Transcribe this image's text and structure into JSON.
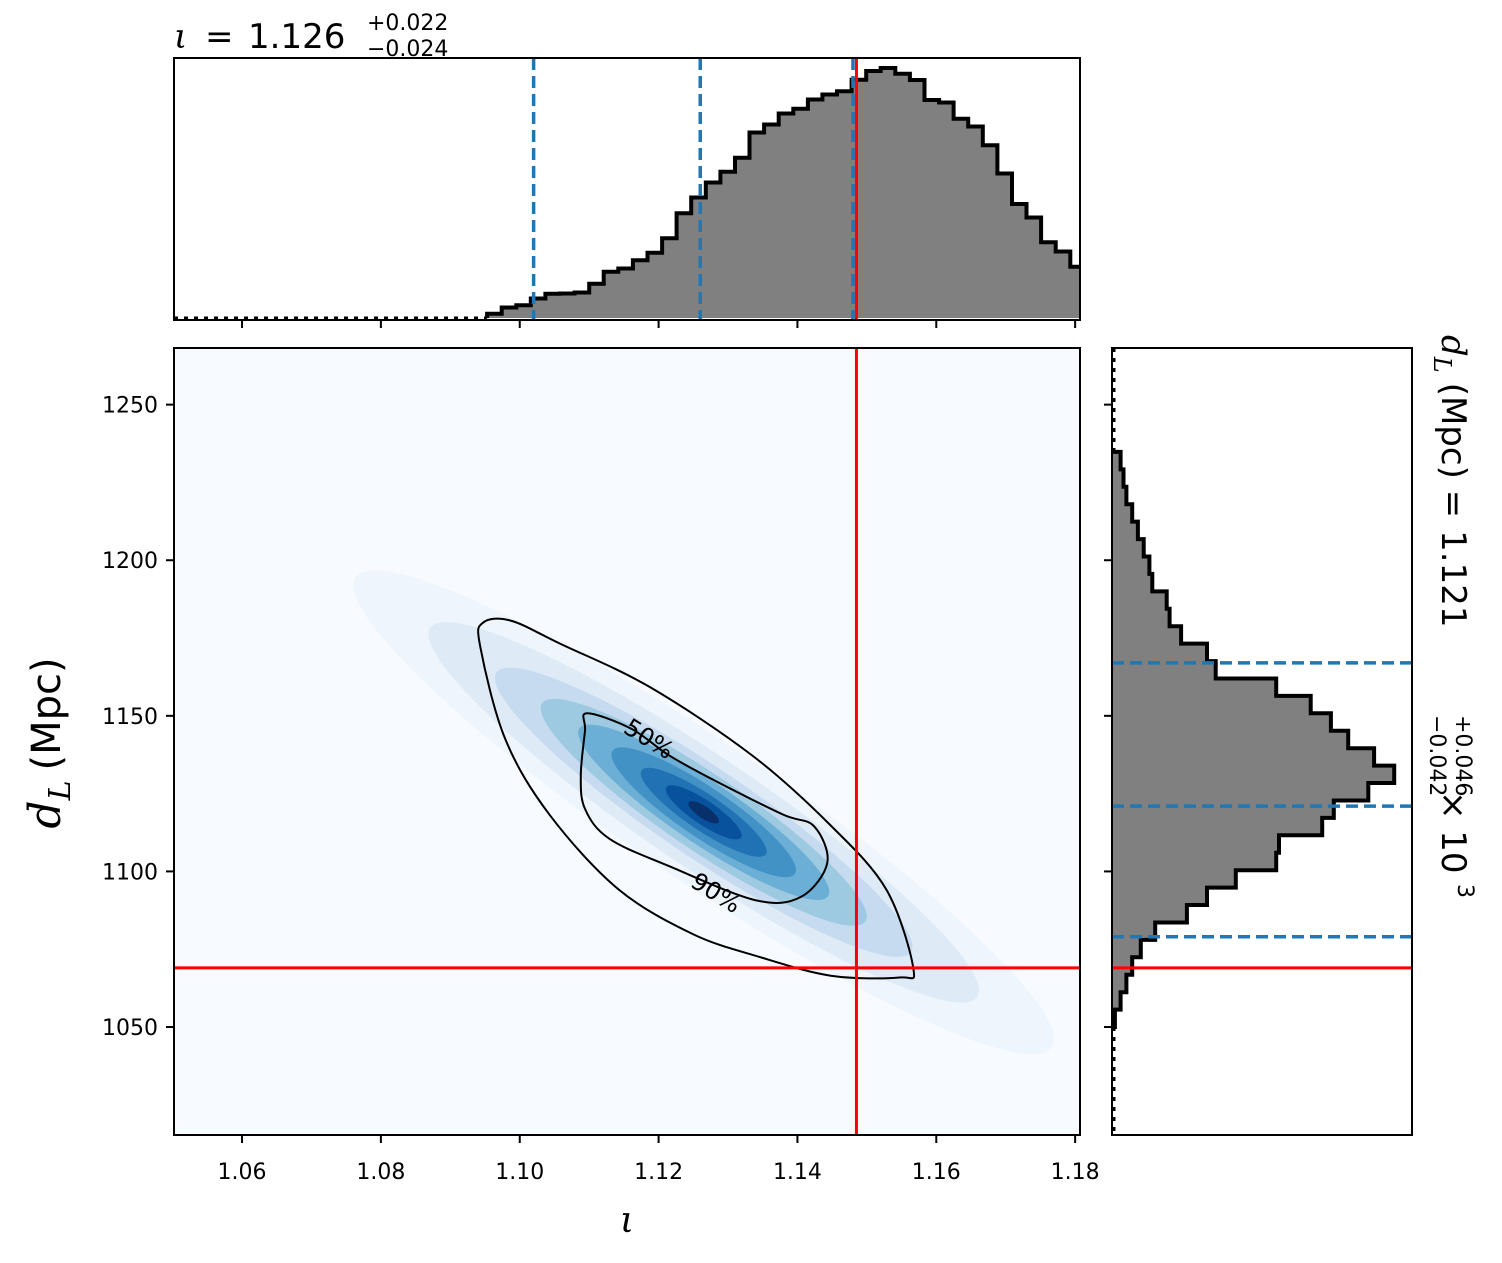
{
  "chart_data": {
    "type": "corner",
    "parameters": [
      "ι",
      "d_L (Mpc)"
    ],
    "top_panel": {
      "title": {
        "symbol": "ι",
        "equals": "=",
        "median": "1.126",
        "plus": "+0.022",
        "minus": "−0.024"
      },
      "bin_edges_start": 1.0953,
      "bin_width": 0.0021,
      "bar_heights": [
        0.017,
        0.042,
        0.051,
        0.078,
        0.097,
        0.098,
        0.102,
        0.137,
        0.185,
        0.198,
        0.231,
        0.261,
        0.319,
        0.419,
        0.482,
        0.542,
        0.585,
        0.641,
        0.742,
        0.774,
        0.818,
        0.837,
        0.874,
        0.894,
        0.907,
        0.953,
        0.988,
        1.0,
        0.977,
        0.952,
        0.872,
        0.862,
        0.797,
        0.766,
        0.691,
        0.578,
        0.456,
        0.402,
        0.303,
        0.266,
        0.205,
        0.161,
        0.124,
        0.089,
        0.068,
        0.043,
        0.027,
        0.017,
        0.011
      ],
      "quantile_lines": [
        1.102,
        1.126,
        1.148
      ],
      "truth": 1.1485
    },
    "joint_panel": {
      "x_ticks": [
        "1.06",
        "1.08",
        "1.10",
        "1.12",
        "1.14",
        "1.16",
        "1.18"
      ],
      "x_tick_values": [
        1.06,
        1.08,
        1.1,
        1.12,
        1.14,
        1.16,
        1.18
      ],
      "xlim": [
        1.0502,
        1.1807
      ],
      "y_ticks": [
        "1050",
        "1100",
        "1150",
        "1200",
        "1250"
      ],
      "y_tick_values": [
        1050,
        1100,
        1150,
        1200,
        1250
      ],
      "ylim": [
        1015.3,
        1268.2
      ],
      "xlabel": "ι",
      "ylabel_main": "d",
      "ylabel_sub": "L",
      "ylabel_unit": "(Mpc)",
      "density_peak": {
        "x": 1.1265,
        "y": 1119
      },
      "contour_labels": [
        "50%",
        "90%"
      ],
      "contour_50": [
        [
          1.1097,
          1.1508
        ],
        [
          1.1161,
          1.1458
        ],
        [
          1.1215,
          1.1373
        ],
        [
          1.1281,
          1.1292
        ],
        [
          1.1379,
          1.1183
        ],
        [
          1.1424,
          1.1145
        ],
        [
          1.1443,
          1.1028
        ],
        [
          1.1405,
          1.0918
        ],
        [
          1.1339,
          1.0908
        ],
        [
          1.1215,
          1.1017
        ],
        [
          1.1129,
          1.1105
        ],
        [
          1.1094,
          1.1201
        ],
        [
          1.1088,
          1.1308
        ],
        [
          1.1094,
          1.1452
        ]
      ],
      "contour_90": [
        [
          1.0947,
          1.1799
        ],
        [
          1.0987,
          1.1806
        ],
        [
          1.1058,
          1.1732
        ],
        [
          1.1187,
          1.1593
        ],
        [
          1.1334,
          1.1374
        ],
        [
          1.1445,
          1.1154
        ],
        [
          1.1528,
          1.0942
        ],
        [
          1.1567,
          1.0687
        ],
        [
          1.1547,
          1.0659
        ],
        [
          1.1448,
          1.0665
        ],
        [
          1.1344,
          1.0726
        ],
        [
          1.1249,
          1.0799
        ],
        [
          1.1142,
          1.0943
        ],
        [
          1.1043,
          1.1182
        ],
        [
          1.0979,
          1.1426
        ],
        [
          1.0943,
          1.1723
        ]
      ],
      "truth_x": 1.1485,
      "truth_y": 1069
    },
    "right_panel": {
      "label": {
        "symbol": "d",
        "sub": "L",
        "unit_eq": "(Mpc) =",
        "median": "1.121",
        "plus": "+0.046",
        "minus": "−0.042",
        "scale": "× 10",
        "exp": "3"
      },
      "bin_edges_start": 1050,
      "bin_width": 5.6,
      "bar_widths": [
        0.01,
        0.03,
        0.05,
        0.07,
        0.1,
        0.15,
        0.26,
        0.33,
        0.43,
        0.57,
        0.58,
        0.73,
        0.77,
        0.89,
        0.98,
        0.91,
        0.82,
        0.76,
        0.69,
        0.57,
        0.36,
        0.33,
        0.24,
        0.2,
        0.19,
        0.14,
        0.13,
        0.11,
        0.09,
        0.07,
        0.05,
        0.04,
        0.03
      ],
      "quantile_lines": [
        1079,
        1121,
        1167
      ],
      "truth": 1069
    },
    "colors": {
      "histogram_fill": "#808080",
      "histogram_edge": "#000000",
      "quantile_line": "#1f77b4",
      "truth_line": "#ff0000",
      "density_light": "#f7fbff",
      "density_dark": "#08306b",
      "density_colormap": "Blues"
    }
  }
}
